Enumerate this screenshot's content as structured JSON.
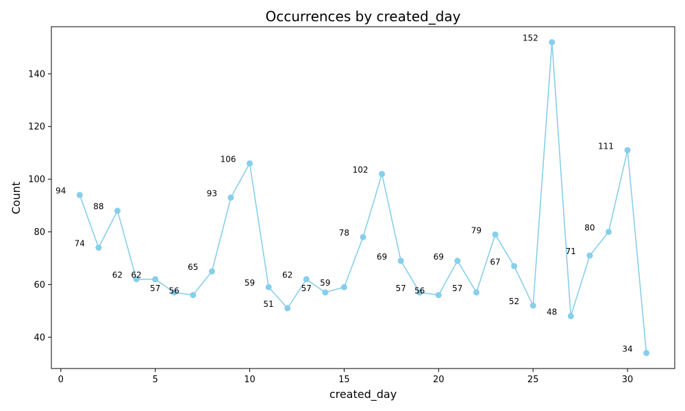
{
  "chart_data": {
    "type": "line",
    "title": "Occurrences by created_day",
    "xlabel": "created_day",
    "ylabel": "Count",
    "x": [
      1,
      2,
      3,
      4,
      5,
      6,
      7,
      8,
      9,
      10,
      11,
      12,
      13,
      14,
      15,
      16,
      17,
      18,
      19,
      20,
      21,
      22,
      23,
      24,
      25,
      26,
      27,
      28,
      29,
      30,
      31
    ],
    "series": [
      {
        "values": [
          94,
          74,
          88,
          62,
          62,
          57,
          56,
          65,
          93,
          106,
          59,
          51,
          62,
          57,
          59,
          78,
          102,
          69,
          57,
          56,
          69,
          57,
          79,
          67,
          52,
          152,
          48,
          71,
          80,
          111,
          34
        ],
        "color": "#87CEEB",
        "marker": "circle"
      }
    ],
    "xlim": [
      -0.5,
      32.5
    ],
    "ylim": [
      28.1,
      157.9
    ],
    "xticks": [
      0,
      5,
      10,
      15,
      20,
      25,
      30
    ],
    "yticks": [
      40,
      60,
      80,
      100,
      120,
      140
    ],
    "grid": false,
    "data_labels": true
  }
}
